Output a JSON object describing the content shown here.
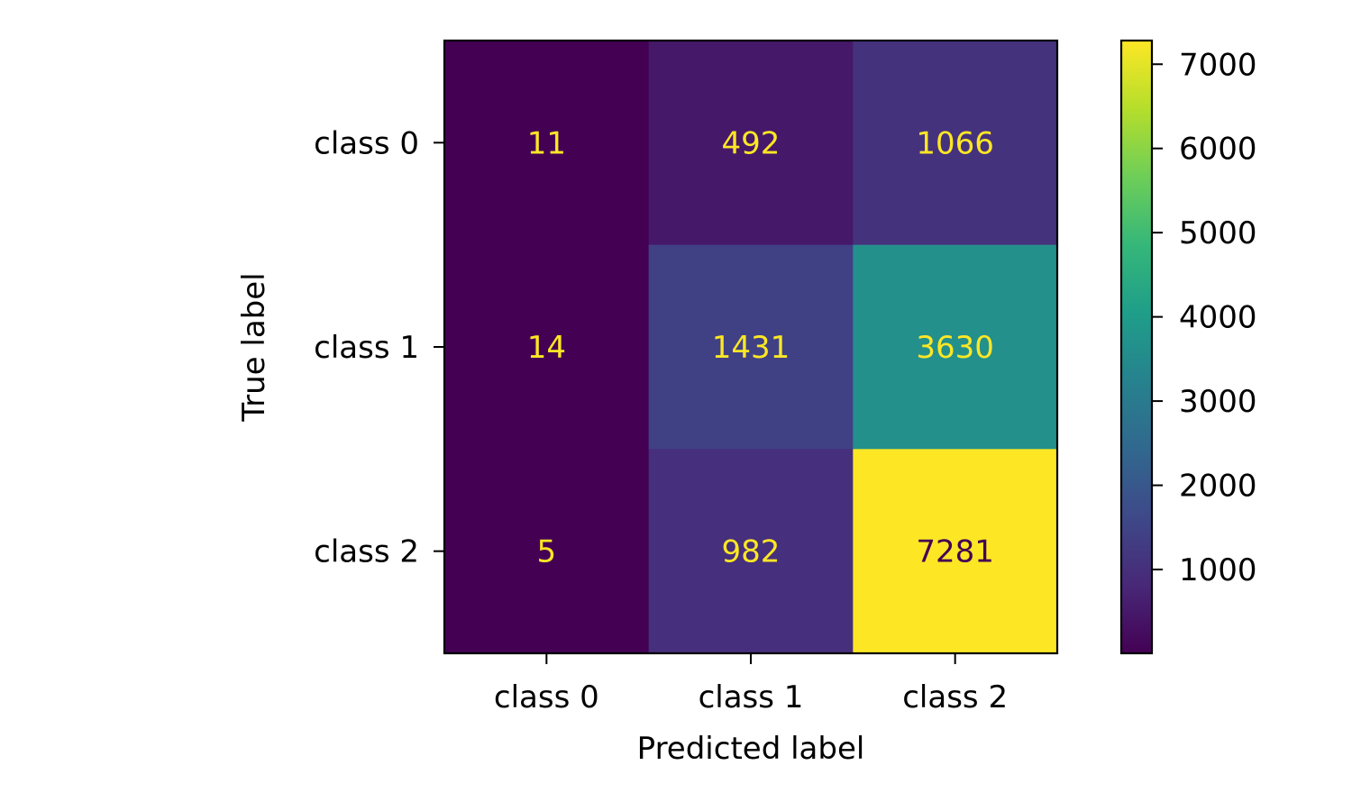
{
  "chart_data": {
    "type": "heatmap",
    "xlabel": "Predicted label",
    "ylabel": "True label",
    "x_categories": [
      "class 0",
      "class 1",
      "class 2"
    ],
    "y_categories": [
      "class 0",
      "class 1",
      "class 2"
    ],
    "values": [
      [
        11,
        492,
        1066
      ],
      [
        14,
        1431,
        3630
      ],
      [
        5,
        982,
        7281
      ]
    ],
    "colormap": "viridis",
    "colorbar": {
      "range": [
        5,
        7281
      ],
      "ticks": [
        1000,
        2000,
        3000,
        4000,
        5000,
        6000,
        7000
      ],
      "tick_labels": [
        "1000",
        "2000",
        "3000",
        "4000",
        "5000",
        "6000",
        "7000"
      ]
    },
    "text_colors": {
      "light": "#fde725",
      "dark": "#440154"
    }
  }
}
